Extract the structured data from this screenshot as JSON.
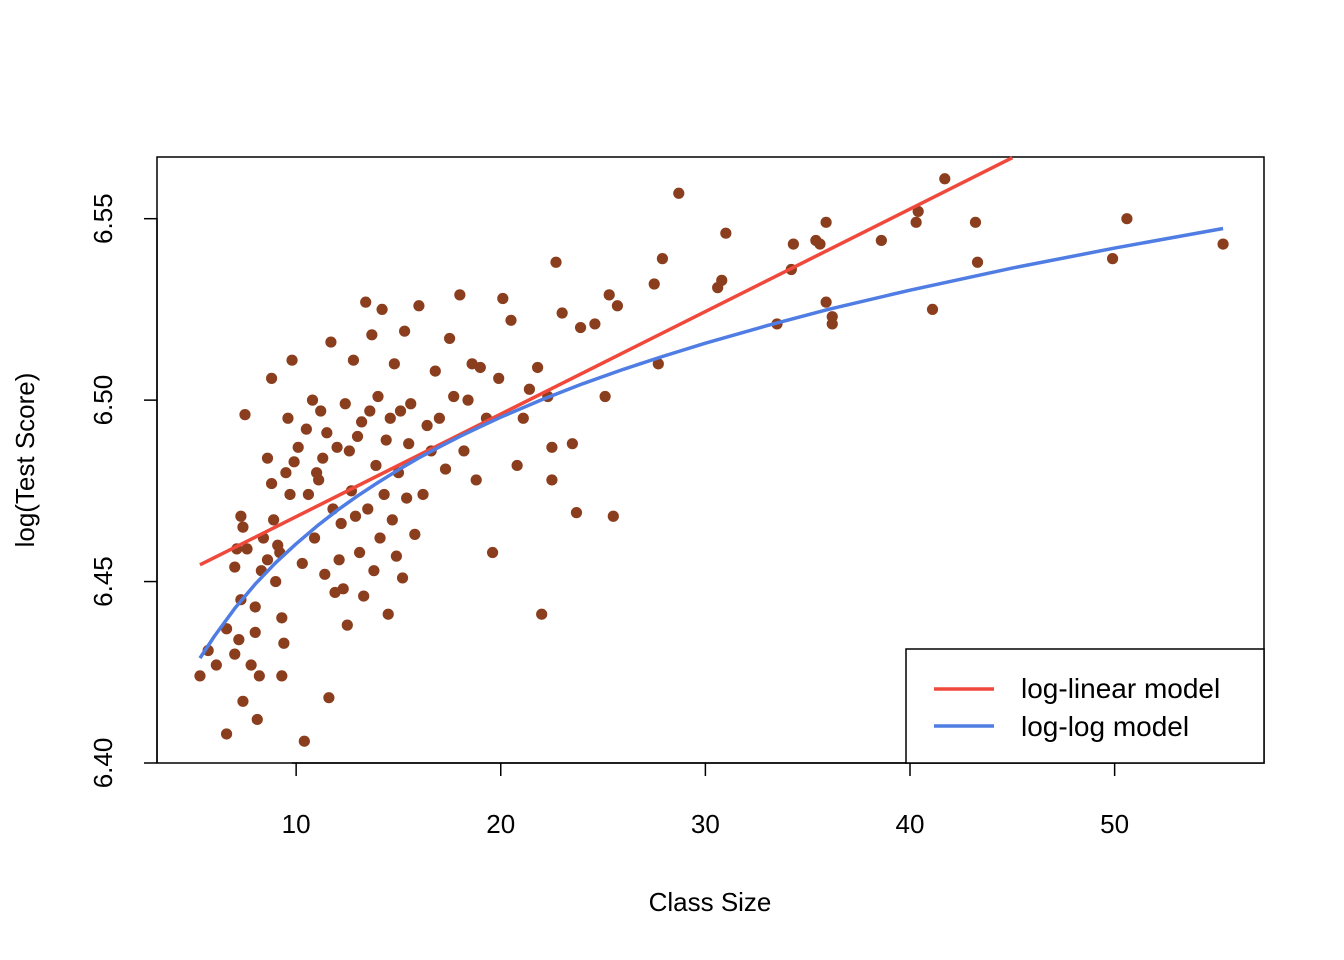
{
  "chart_data": {
    "type": "scatter",
    "title": "",
    "xlabel": "Class Size",
    "ylabel": "log(Test Score)",
    "xlim": [
      3.2,
      57.3
    ],
    "ylim": [
      6.4,
      6.567
    ],
    "x_ticks": [
      10,
      20,
      30,
      40,
      50
    ],
    "x_tick_labels": [
      "10",
      "20",
      "30",
      "40",
      "50"
    ],
    "y_ticks": [
      6.4,
      6.45,
      6.5,
      6.55
    ],
    "y_tick_labels": [
      "6.40",
      "6.45",
      "6.50",
      "6.55"
    ],
    "grid": false,
    "legend_position": "bottom-right",
    "point_color": "#8B3E1E",
    "series": [
      {
        "name": "log-linear model",
        "kind": "line",
        "color": "#F0483A",
        "x": [
          5.3,
          45.0
        ],
        "y": [
          6.4546,
          6.5668
        ]
      },
      {
        "name": "log-log model",
        "kind": "line",
        "color": "#4F7DE3",
        "x": [
          5.3,
          6,
          7,
          8,
          9,
          10,
          11,
          12,
          13,
          14,
          15,
          16,
          17,
          18,
          19,
          20,
          22,
          24,
          26,
          28,
          30,
          33,
          36,
          40,
          45,
          50,
          55.3
        ],
        "y": [
          6.4289,
          6.4349,
          6.4426,
          6.4493,
          6.4552,
          6.4604,
          6.4652,
          6.4696,
          6.4736,
          6.4773,
          6.4808,
          6.4841,
          6.4871,
          6.49,
          6.4927,
          6.4953,
          6.5001,
          6.5045,
          6.5085,
          6.5122,
          6.5157,
          6.5205,
          6.525,
          6.5303,
          6.5364,
          6.5419,
          6.5473
        ]
      },
      {
        "name": "",
        "kind": "points",
        "color": "#8B3E1E",
        "points": [
          [
            5.3,
            6.424
          ],
          [
            5.7,
            6.431
          ],
          [
            6.1,
            6.427
          ],
          [
            6.6,
            6.437
          ],
          [
            6.6,
            6.408
          ],
          [
            7.0,
            6.454
          ],
          [
            7.0,
            6.43
          ],
          [
            7.1,
            6.459
          ],
          [
            7.2,
            6.434
          ],
          [
            7.3,
            6.445
          ],
          [
            7.3,
            6.468
          ],
          [
            7.4,
            6.465
          ],
          [
            7.4,
            6.417
          ],
          [
            7.5,
            6.496
          ],
          [
            7.6,
            6.459
          ],
          [
            7.8,
            6.427
          ],
          [
            8.0,
            6.436
          ],
          [
            8.0,
            6.443
          ],
          [
            8.1,
            6.412
          ],
          [
            8.2,
            6.424
          ],
          [
            8.3,
            6.453
          ],
          [
            8.4,
            6.462
          ],
          [
            8.6,
            6.456
          ],
          [
            8.6,
            6.484
          ],
          [
            8.8,
            6.477
          ],
          [
            8.8,
            6.506
          ],
          [
            8.9,
            6.467
          ],
          [
            9.0,
            6.45
          ],
          [
            9.1,
            6.46
          ],
          [
            9.2,
            6.458
          ],
          [
            9.3,
            6.44
          ],
          [
            9.3,
            6.424
          ],
          [
            9.4,
            6.433
          ],
          [
            9.5,
            6.48
          ],
          [
            9.6,
            6.495
          ],
          [
            9.7,
            6.474
          ],
          [
            9.8,
            6.511
          ],
          [
            9.9,
            6.483
          ],
          [
            10.1,
            6.487
          ],
          [
            10.3,
            6.455
          ],
          [
            10.4,
            6.406
          ],
          [
            10.5,
            6.492
          ],
          [
            10.6,
            6.474
          ],
          [
            10.8,
            6.5
          ],
          [
            10.9,
            6.462
          ],
          [
            11.0,
            6.48
          ],
          [
            11.1,
            6.478
          ],
          [
            11.2,
            6.497
          ],
          [
            11.3,
            6.484
          ],
          [
            11.4,
            6.452
          ],
          [
            11.5,
            6.491
          ],
          [
            11.6,
            6.418
          ],
          [
            11.7,
            6.516
          ],
          [
            11.8,
            6.47
          ],
          [
            11.9,
            6.447
          ],
          [
            12.0,
            6.487
          ],
          [
            12.1,
            6.456
          ],
          [
            12.2,
            6.466
          ],
          [
            12.3,
            6.448
          ],
          [
            12.4,
            6.499
          ],
          [
            12.5,
            6.438
          ],
          [
            12.6,
            6.486
          ],
          [
            12.7,
            6.475
          ],
          [
            12.8,
            6.511
          ],
          [
            12.9,
            6.468
          ],
          [
            13.0,
            6.49
          ],
          [
            13.1,
            6.458
          ],
          [
            13.2,
            6.494
          ],
          [
            13.3,
            6.446
          ],
          [
            13.4,
            6.527
          ],
          [
            13.5,
            6.47
          ],
          [
            13.6,
            6.497
          ],
          [
            13.7,
            6.518
          ],
          [
            13.8,
            6.453
          ],
          [
            13.9,
            6.482
          ],
          [
            14.0,
            6.501
          ],
          [
            14.1,
            6.462
          ],
          [
            14.2,
            6.525
          ],
          [
            14.3,
            6.474
          ],
          [
            14.4,
            6.489
          ],
          [
            14.5,
            6.441
          ],
          [
            14.6,
            6.495
          ],
          [
            14.7,
            6.467
          ],
          [
            14.8,
            6.51
          ],
          [
            14.9,
            6.457
          ],
          [
            15.0,
            6.48
          ],
          [
            15.1,
            6.497
          ],
          [
            15.2,
            6.451
          ],
          [
            15.3,
            6.519
          ],
          [
            15.4,
            6.473
          ],
          [
            15.5,
            6.488
          ],
          [
            15.6,
            6.499
          ],
          [
            15.8,
            6.463
          ],
          [
            16.0,
            6.526
          ],
          [
            16.2,
            6.474
          ],
          [
            16.4,
            6.493
          ],
          [
            16.6,
            6.486
          ],
          [
            16.8,
            6.508
          ],
          [
            17.0,
            6.495
          ],
          [
            17.3,
            6.481
          ],
          [
            17.5,
            6.517
          ],
          [
            17.7,
            6.501
          ],
          [
            18.0,
            6.529
          ],
          [
            18.2,
            6.486
          ],
          [
            18.4,
            6.5
          ],
          [
            18.6,
            6.51
          ],
          [
            18.8,
            6.478
          ],
          [
            19.0,
            6.509
          ],
          [
            19.3,
            6.495
          ],
          [
            19.6,
            6.458
          ],
          [
            19.9,
            6.506
          ],
          [
            20.1,
            6.528
          ],
          [
            20.5,
            6.522
          ],
          [
            20.8,
            6.482
          ],
          [
            21.1,
            6.495
          ],
          [
            21.4,
            6.503
          ],
          [
            21.8,
            6.509
          ],
          [
            22.0,
            6.441
          ],
          [
            22.3,
            6.501
          ],
          [
            22.5,
            6.487
          ],
          [
            22.5,
            6.478
          ],
          [
            22.7,
            6.538
          ],
          [
            23.0,
            6.524
          ],
          [
            23.5,
            6.488
          ],
          [
            23.7,
            6.469
          ],
          [
            23.9,
            6.52
          ],
          [
            24.6,
            6.521
          ],
          [
            25.1,
            6.501
          ],
          [
            25.3,
            6.529
          ],
          [
            25.5,
            6.468
          ],
          [
            25.7,
            6.526
          ],
          [
            27.5,
            6.532
          ],
          [
            27.7,
            6.51
          ],
          [
            27.9,
            6.539
          ],
          [
            28.7,
            6.557
          ],
          [
            30.6,
            6.531
          ],
          [
            30.8,
            6.533
          ],
          [
            31.0,
            6.546
          ],
          [
            33.5,
            6.521
          ],
          [
            34.2,
            6.536
          ],
          [
            34.3,
            6.543
          ],
          [
            35.4,
            6.544
          ],
          [
            35.6,
            6.543
          ],
          [
            35.9,
            6.527
          ],
          [
            35.9,
            6.549
          ],
          [
            36.2,
            6.521
          ],
          [
            36.2,
            6.523
          ],
          [
            38.6,
            6.544
          ],
          [
            40.3,
            6.549
          ],
          [
            40.4,
            6.552
          ],
          [
            41.1,
            6.525
          ],
          [
            41.7,
            6.561
          ],
          [
            43.2,
            6.549
          ],
          [
            43.3,
            6.538
          ],
          [
            49.9,
            6.539
          ],
          [
            50.6,
            6.55
          ],
          [
            55.3,
            6.543
          ]
        ]
      }
    ]
  }
}
